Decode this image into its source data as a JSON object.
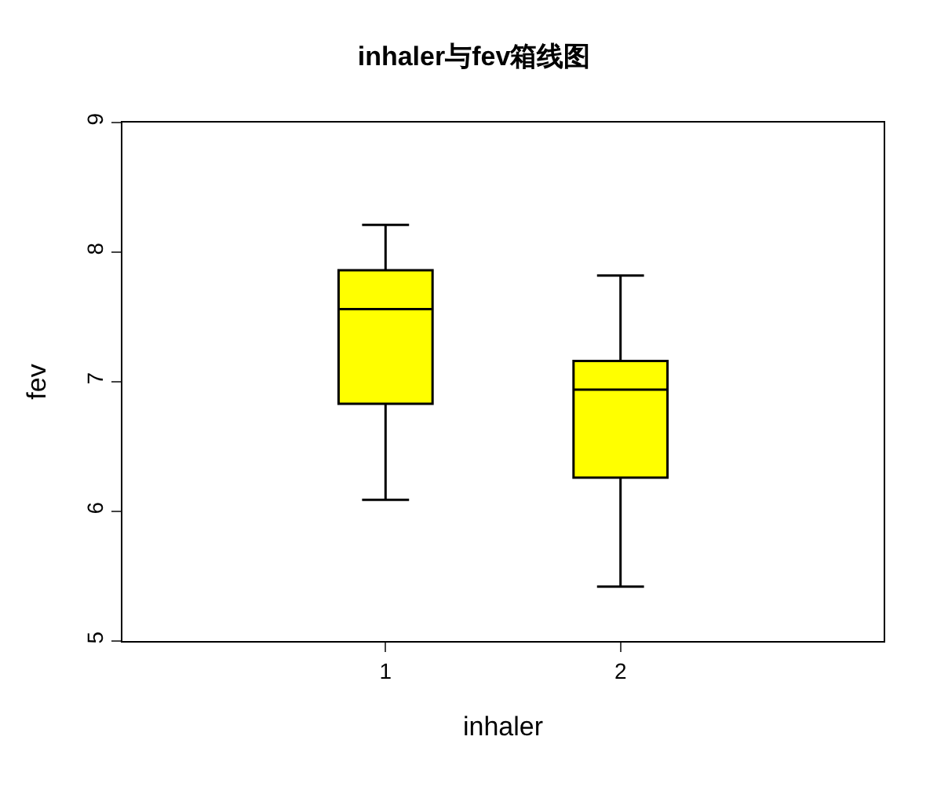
{
  "chart_data": {
    "type": "box",
    "title": "inhaler与fev箱线图",
    "xlabel": "inhaler",
    "ylabel": "fev",
    "categories": [
      "1",
      "2"
    ],
    "boxes": [
      {
        "low": 6.09,
        "q1": 6.83,
        "median": 7.56,
        "q3": 7.86,
        "high": 8.21
      },
      {
        "low": 5.42,
        "q1": 6.26,
        "median": 6.94,
        "q3": 7.16,
        "high": 7.82
      }
    ],
    "color": "#ffff00",
    "ylim": [
      5,
      9
    ],
    "yticks": [
      5,
      6,
      7,
      8,
      9
    ]
  }
}
